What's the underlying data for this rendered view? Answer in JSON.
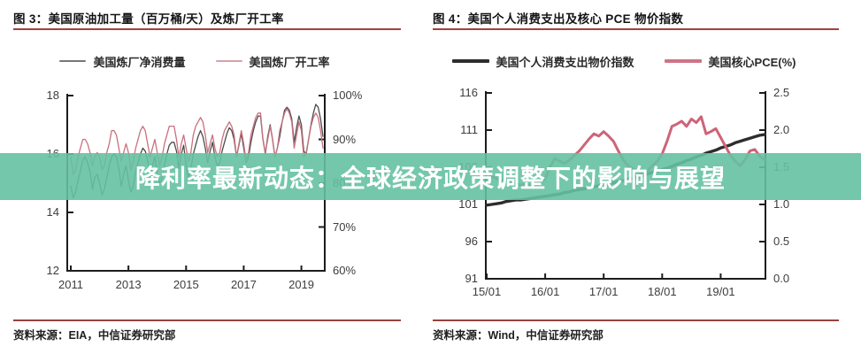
{
  "overlay": {
    "text": "降利率最新动态：全球经济政策调整下的影响与展望",
    "bg_color": "#65c1a1",
    "bg_opacity": 0.9,
    "text_color": "#ffffff"
  },
  "figures": [
    {
      "title": "图 3：美国原油加工量（百万桶/天）及炼厂开工率",
      "source": "资料来源：EIA，中信证券研究部"
    },
    {
      "title": "图 4：美国个人消费支出及核心 PCE 物价指数",
      "source": "资料来源：Wind，中信证券研究部"
    }
  ],
  "colors": {
    "rule_red": "#a1423e",
    "axis_line": "#1c1c1c",
    "axis_text": "#3d3d3d"
  },
  "chart_data": [
    {
      "type": "line",
      "title": "美国原油加工量（百万桶/天）及炼厂开工率",
      "x_tick_labels": [
        "2011",
        "2013",
        "2015",
        "2017",
        "2019"
      ],
      "x_tick_every_n_points": 24,
      "grid": false,
      "legend_position": "top",
      "y_left": {
        "min": 12,
        "max": 18,
        "tick_values": [
          18,
          16,
          14,
          12
        ],
        "tick_labels": [
          "18",
          "16",
          "14",
          "12"
        ]
      },
      "y_right": {
        "min": 60,
        "max": 100,
        "tick_values": [
          100,
          90,
          80,
          70,
          60
        ],
        "tick_labels": [
          "100%",
          "90%",
          "80%",
          "70%",
          "60%"
        ]
      },
      "series": [
        {
          "name": "美国炼厂净消费量",
          "axis": "left",
          "color": "#4c4c4a",
          "legend_color": "#777777",
          "width": 1.3,
          "values": [
            14.9,
            14.5,
            14.7,
            15.1,
            15.4,
            15.8,
            15.9,
            15.7,
            15.4,
            14.8,
            15.2,
            15.3,
            15.0,
            14.6,
            14.8,
            15.2,
            15.6,
            15.9,
            16.0,
            15.9,
            15.5,
            14.9,
            15.3,
            15.6,
            15.1,
            14.7,
            14.9,
            15.4,
            15.7,
            16.0,
            16.2,
            16.1,
            15.8,
            15.2,
            15.6,
            15.9,
            15.3,
            15.0,
            15.2,
            15.6,
            16.0,
            16.3,
            16.4,
            16.4,
            16.1,
            15.5,
            16.0,
            16.3,
            15.6,
            15.2,
            15.5,
            16.0,
            16.3,
            16.6,
            16.8,
            16.6,
            16.2,
            15.7,
            16.1,
            16.4,
            15.9,
            15.6,
            15.7,
            16.1,
            16.4,
            16.7,
            16.9,
            16.8,
            16.5,
            15.9,
            16.3,
            16.7,
            16.2,
            15.7,
            15.9,
            16.4,
            16.8,
            17.1,
            17.3,
            17.3,
            16.5,
            16.0,
            16.6,
            17.0,
            16.5,
            15.9,
            16.2,
            16.6,
            17.1,
            17.5,
            17.6,
            17.5,
            17.2,
            16.4,
            16.9,
            17.3,
            17.0,
            16.1,
            16.0,
            16.5,
            17.0,
            17.4,
            17.7,
            17.6,
            17.2,
            16.6
          ]
        },
        {
          "name": "美国炼厂开工率",
          "axis": "right",
          "color": "#c9707f",
          "legend_color": "#d5a2ac",
          "width": 1.3,
          "values": [
            86,
            82,
            83,
            86,
            88,
            90,
            90,
            89,
            87,
            84,
            86,
            87,
            86,
            83,
            84,
            87,
            89,
            92,
            92,
            91,
            88,
            85,
            87,
            89,
            87,
            83,
            85,
            88,
            90,
            92,
            93,
            92,
            89,
            86,
            88,
            90,
            87,
            84,
            86,
            89,
            91,
            93,
            93,
            93,
            90,
            86,
            89,
            91,
            88,
            85,
            87,
            91,
            93,
            94,
            95,
            94,
            91,
            87,
            89,
            91,
            88,
            86,
            87,
            90,
            92,
            93,
            94,
            93,
            91,
            86,
            89,
            92,
            89,
            85,
            87,
            91,
            93,
            95,
            96,
            96,
            90,
            87,
            90,
            93,
            90,
            86,
            88,
            92,
            94,
            96,
            97,
            96,
            94,
            88,
            91,
            94,
            92,
            86,
            87,
            90,
            93,
            95,
            96,
            95,
            92,
            88
          ]
        }
      ]
    },
    {
      "type": "line",
      "title": "美国个人消费支出及核心 PCE 物价指数",
      "x_tick_labels": [
        "15/01",
        "16/01",
        "17/01",
        "18/01",
        "19/01"
      ],
      "x_tick_every_n_points": 12,
      "grid": false,
      "legend_position": "top",
      "y_left": {
        "min": 91,
        "max": 116,
        "tick_values": [
          116,
          111,
          106,
          101,
          96,
          91
        ],
        "tick_labels": [
          "116",
          "111",
          "106",
          "101",
          "96",
          "91"
        ]
      },
      "y_right": {
        "min": 0.0,
        "max": 2.5,
        "tick_values": [
          2.5,
          2.0,
          1.5,
          1.0,
          0.5,
          0.0
        ],
        "tick_labels": [
          "2.5",
          "2.0",
          "1.5",
          "1.0",
          "0.5",
          "0.0"
        ]
      },
      "series": [
        {
          "name": "美国个人消费支出物价指数",
          "axis": "left",
          "color": "#2d2d2d",
          "legend_color": "#2d2d2d",
          "width": 3.4,
          "values": [
            100.9,
            101.0,
            101.1,
            101.2,
            101.4,
            101.5,
            101.6,
            101.6,
            101.7,
            101.8,
            101.9,
            102.0,
            102.1,
            102.2,
            102.3,
            102.4,
            102.6,
            102.7,
            102.9,
            103.0,
            103.1,
            103.3,
            103.4,
            103.5,
            103.7,
            103.8,
            103.9,
            104.1,
            104.2,
            104.4,
            104.5,
            104.7,
            104.9,
            105.1,
            105.3,
            105.5,
            105.7,
            105.9,
            106.1,
            106.4,
            106.6,
            106.9,
            107.1,
            107.4,
            107.6,
            107.9,
            108.1,
            108.3,
            108.6,
            108.8,
            109.0,
            109.3,
            109.5,
            109.7,
            109.9,
            110.1,
            110.3,
            110.4
          ]
        },
        {
          "name": "美国核心PCE(%)",
          "axis": "right",
          "color": "#cd6477",
          "legend_color": "#ce7486",
          "width": 3.0,
          "values": [
            1.42,
            1.38,
            1.35,
            1.32,
            1.34,
            1.3,
            1.28,
            1.26,
            1.28,
            1.25,
            1.24,
            1.28,
            1.35,
            1.5,
            1.62,
            1.58,
            1.55,
            1.6,
            1.66,
            1.72,
            1.8,
            1.88,
            1.95,
            1.92,
            1.98,
            1.92,
            1.85,
            1.72,
            1.6,
            1.52,
            1.48,
            1.45,
            1.4,
            1.45,
            1.52,
            1.58,
            1.68,
            1.85,
            2.05,
            2.08,
            2.12,
            2.05,
            2.15,
            2.1,
            2.18,
            1.95,
            1.98,
            2.02,
            1.9,
            1.78,
            1.66,
            1.58,
            1.52,
            1.6,
            1.72,
            1.74,
            1.65,
            1.6
          ]
        }
      ]
    }
  ]
}
